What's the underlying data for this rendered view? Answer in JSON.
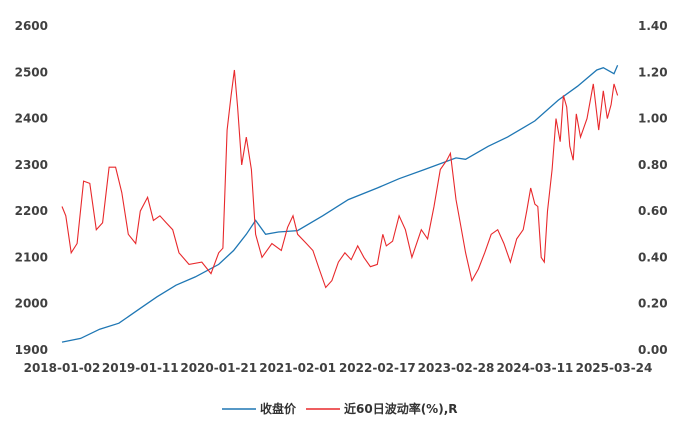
{
  "chart_data": {
    "type": "line",
    "x_tick_labels": [
      "2018-01-02",
      "2019-01-11",
      "2020-01-21",
      "2021-02-01",
      "2022-02-17",
      "2023-02-28",
      "2024-03-11",
      "2025-03-24"
    ],
    "y_left": {
      "ylim": [
        1900,
        2600
      ],
      "ticks": [
        "1900",
        "2000",
        "2100",
        "2200",
        "2300",
        "2400",
        "2500",
        "2600"
      ]
    },
    "y_right": {
      "ylim": [
        0.0,
        1.4
      ],
      "ticks": [
        "0.00",
        "0.20",
        "0.40",
        "0.60",
        "0.80",
        "1.00",
        "1.20",
        "1.40"
      ]
    },
    "series": [
      {
        "name": "收盘价",
        "axis": "left",
        "color": "#1f77b4",
        "points": [
          [
            "2018-01-02",
            1917
          ],
          [
            "2018-04-01",
            1925
          ],
          [
            "2018-07-01",
            1945
          ],
          [
            "2018-10-01",
            1958
          ],
          [
            "2019-01-11",
            1990
          ],
          [
            "2019-04-01",
            2015
          ],
          [
            "2019-07-01",
            2040
          ],
          [
            "2019-10-01",
            2058
          ],
          [
            "2020-01-21",
            2085
          ],
          [
            "2020-04-01",
            2115
          ],
          [
            "2020-06-01",
            2150
          ],
          [
            "2020-07-15",
            2180
          ],
          [
            "2020-09-01",
            2150
          ],
          [
            "2020-11-01",
            2155
          ],
          [
            "2021-02-01",
            2158
          ],
          [
            "2021-06-01",
            2190
          ],
          [
            "2021-10-01",
            2225
          ],
          [
            "2022-02-17",
            2250
          ],
          [
            "2022-06-01",
            2270
          ],
          [
            "2022-10-01",
            2290
          ],
          [
            "2023-02-28",
            2315
          ],
          [
            "2023-04-15",
            2312
          ],
          [
            "2023-08-01",
            2340
          ],
          [
            "2023-11-01",
            2360
          ],
          [
            "2024-03-11",
            2395
          ],
          [
            "2024-07-01",
            2440
          ],
          [
            "2024-10-01",
            2470
          ],
          [
            "2025-01-01",
            2505
          ],
          [
            "2025-02-01",
            2510
          ],
          [
            "2025-03-24",
            2497
          ],
          [
            "2025-04-10",
            2515
          ]
        ]
      },
      {
        "name": "近60日波动率(%),R",
        "axis": "right",
        "color": "#e8292c",
        "points": [
          [
            "2018-01-02",
            0.62
          ],
          [
            "2018-01-20",
            0.58
          ],
          [
            "2018-02-15",
            0.42
          ],
          [
            "2018-03-15",
            0.46
          ],
          [
            "2018-04-15",
            0.73
          ],
          [
            "2018-05-15",
            0.72
          ],
          [
            "2018-06-15",
            0.52
          ],
          [
            "2018-07-15",
            0.55
          ],
          [
            "2018-08-15",
            0.79
          ],
          [
            "2018-09-15",
            0.79
          ],
          [
            "2018-10-15",
            0.68
          ],
          [
            "2018-11-15",
            0.5
          ],
          [
            "2018-12-20",
            0.46
          ],
          [
            "2019-01-11",
            0.6
          ],
          [
            "2019-02-15",
            0.66
          ],
          [
            "2019-03-15",
            0.56
          ],
          [
            "2019-04-15",
            0.58
          ],
          [
            "2019-05-15",
            0.55
          ],
          [
            "2019-06-15",
            0.52
          ],
          [
            "2019-07-15",
            0.42
          ],
          [
            "2019-09-01",
            0.37
          ],
          [
            "2019-11-01",
            0.38
          ],
          [
            "2019-12-15",
            0.33
          ],
          [
            "2020-01-21",
            0.42
          ],
          [
            "2020-02-10",
            0.44
          ],
          [
            "2020-03-01",
            0.95
          ],
          [
            "2020-03-20",
            1.1
          ],
          [
            "2020-04-05",
            1.21
          ],
          [
            "2020-04-20",
            1.05
          ],
          [
            "2020-05-10",
            0.8
          ],
          [
            "2020-06-01",
            0.92
          ],
          [
            "2020-06-25",
            0.78
          ],
          [
            "2020-07-15",
            0.5
          ],
          [
            "2020-08-15",
            0.4
          ],
          [
            "2020-10-01",
            0.46
          ],
          [
            "2020-11-15",
            0.43
          ],
          [
            "2020-12-15",
            0.53
          ],
          [
            "2021-01-10",
            0.58
          ],
          [
            "2021-02-01",
            0.5
          ],
          [
            "2021-03-15",
            0.46
          ],
          [
            "2021-04-15",
            0.43
          ],
          [
            "2021-05-15",
            0.35
          ],
          [
            "2021-06-15",
            0.27
          ],
          [
            "2021-07-15",
            0.3
          ],
          [
            "2021-08-15",
            0.38
          ],
          [
            "2021-09-15",
            0.42
          ],
          [
            "2021-10-15",
            0.39
          ],
          [
            "2021-11-15",
            0.45
          ],
          [
            "2021-12-15",
            0.4
          ],
          [
            "2022-01-15",
            0.36
          ],
          [
            "2022-02-17",
            0.37
          ],
          [
            "2022-03-15",
            0.5
          ],
          [
            "2022-04-01",
            0.45
          ],
          [
            "2022-05-01",
            0.47
          ],
          [
            "2022-06-01",
            0.58
          ],
          [
            "2022-07-01",
            0.52
          ],
          [
            "2022-08-01",
            0.4
          ],
          [
            "2022-09-15",
            0.52
          ],
          [
            "2022-10-15",
            0.48
          ],
          [
            "2022-11-15",
            0.62
          ],
          [
            "2022-12-15",
            0.78
          ],
          [
            "2023-01-15",
            0.82
          ],
          [
            "2023-02-01",
            0.85
          ],
          [
            "2023-02-28",
            0.65
          ],
          [
            "2023-03-20",
            0.55
          ],
          [
            "2023-04-15",
            0.42
          ],
          [
            "2023-05-15",
            0.3
          ],
          [
            "2023-06-15",
            0.35
          ],
          [
            "2023-07-15",
            0.42
          ],
          [
            "2023-08-15",
            0.5
          ],
          [
            "2023-09-15",
            0.52
          ],
          [
            "2023-10-15",
            0.46
          ],
          [
            "2023-11-15",
            0.38
          ],
          [
            "2023-12-15",
            0.48
          ],
          [
            "2024-01-15",
            0.52
          ],
          [
            "2024-02-01",
            0.6
          ],
          [
            "2024-02-20",
            0.7
          ],
          [
            "2024-03-11",
            0.63
          ],
          [
            "2024-03-25",
            0.62
          ],
          [
            "2024-04-10",
            0.4
          ],
          [
            "2024-04-25",
            0.38
          ],
          [
            "2024-05-10",
            0.6
          ],
          [
            "2024-06-01",
            0.78
          ],
          [
            "2024-06-20",
            1.0
          ],
          [
            "2024-07-10",
            0.9
          ],
          [
            "2024-07-25",
            1.1
          ],
          [
            "2024-08-10",
            1.05
          ],
          [
            "2024-08-25",
            0.88
          ],
          [
            "2024-09-10",
            0.82
          ],
          [
            "2024-09-25",
            1.02
          ],
          [
            "2024-10-15",
            0.92
          ],
          [
            "2024-11-15",
            1.0
          ],
          [
            "2024-12-15",
            1.15
          ],
          [
            "2025-01-10",
            0.95
          ],
          [
            "2025-02-01",
            1.12
          ],
          [
            "2025-02-20",
            1.0
          ],
          [
            "2025-03-10",
            1.06
          ],
          [
            "2025-03-24",
            1.15
          ],
          [
            "2025-04-10",
            1.1
          ]
        ]
      }
    ],
    "legend": "bottom",
    "grid": false
  }
}
